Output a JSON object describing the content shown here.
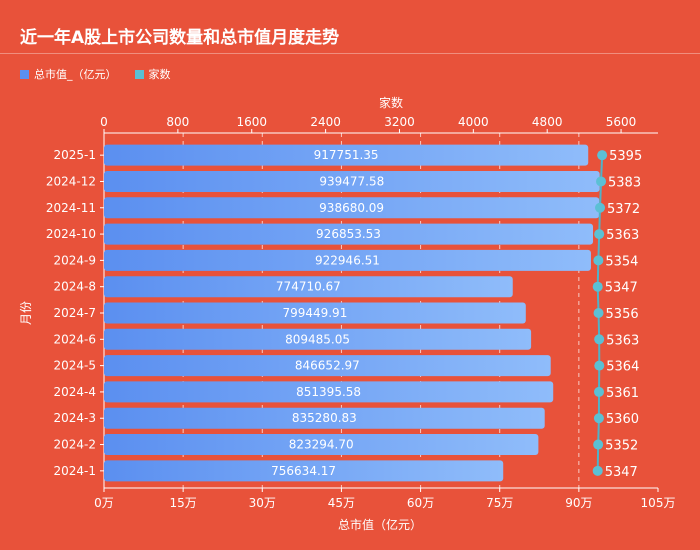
{
  "title": "近一年A股上市公司数量和总市值月度走势",
  "colors": {
    "background": "#e8523a",
    "bar": "#6aa8f5",
    "dots": "#5bc0d4",
    "legend_bar": "#5b8ff0"
  },
  "chart_data": {
    "type": "bar",
    "title": "近一年A股上市公司数量和总市值月度走势",
    "ylabel": "月份",
    "xlabel": "总市值（亿元）",
    "x2label": "家数",
    "categories": [
      "2025-1",
      "2024-12",
      "2024-11",
      "2024-10",
      "2024-9",
      "2024-8",
      "2024-7",
      "2024-6",
      "2024-5",
      "2024-4",
      "2024-3",
      "2024-2",
      "2024-1"
    ],
    "series": [
      {
        "name": "总市值_（亿元）",
        "axis": "bottom",
        "values": [
          917751.35,
          939477.58,
          938680.09,
          926853.53,
          922946.51,
          774710.67,
          799449.91,
          809485.05,
          846652.97,
          851395.58,
          835280.83,
          823294.7,
          756634.17
        ],
        "labels": [
          "917751.35",
          "939477.58",
          "938680.09",
          "926853.53",
          "922946.51",
          "774710.67",
          "799449.91",
          "809485.05",
          "846652.97",
          "851395.58",
          "835280.83",
          "823294.70",
          "756634.17"
        ]
      },
      {
        "name": "家数",
        "axis": "top",
        "values": [
          5395,
          5383,
          5372,
          5363,
          5354,
          5347,
          5356,
          5363,
          5364,
          5361,
          5360,
          5352,
          5347
        ]
      }
    ],
    "bottom_axis": {
      "min": 0,
      "max": 1050000,
      "ticks": [
        0,
        150000,
        300000,
        450000,
        600000,
        750000,
        900000,
        1050000
      ],
      "tick_labels": [
        "0万",
        "15万",
        "30万",
        "45万",
        "60万",
        "75万",
        "90万",
        "105万"
      ]
    },
    "top_axis": {
      "min": 0,
      "max": 6000,
      "ticks": [
        0,
        800,
        1600,
        2400,
        3200,
        4000,
        4800,
        5600
      ],
      "tick_labels": [
        "0",
        "800",
        "1600",
        "2400",
        "3200",
        "4000",
        "4800",
        "5600"
      ]
    },
    "grid": false,
    "legend": "top-left"
  }
}
